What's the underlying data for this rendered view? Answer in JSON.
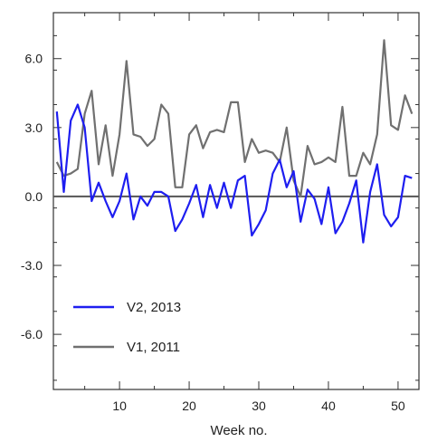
{
  "chart_data": {
    "type": "line",
    "xlabel": "Week no.",
    "ylabel": "",
    "xlim": [
      0.5,
      53
    ],
    "ylim": [
      -8.4,
      8.0
    ],
    "xticks": [
      10,
      20,
      30,
      40,
      50
    ],
    "xtick_labels": [
      "10",
      "20",
      "30",
      "40",
      "50"
    ],
    "yticks": [
      6.0,
      3.0,
      0.0,
      -3.0,
      -6.0
    ],
    "ytick_labels": [
      "6.0",
      "3.0",
      "0.0",
      "-3.0",
      "-6.0"
    ],
    "zero_line": 0.0,
    "grid": false,
    "legend_position": "bottom-left",
    "series": [
      {
        "name": "V1, 2011",
        "color": "#707070",
        "x": [
          1,
          2,
          3,
          4,
          5,
          6,
          7,
          8,
          9,
          10,
          11,
          12,
          13,
          14,
          15,
          16,
          17,
          18,
          19,
          20,
          21,
          22,
          23,
          24,
          25,
          26,
          27,
          28,
          29,
          30,
          31,
          32,
          33,
          34,
          35,
          36,
          37,
          38,
          39,
          40,
          41,
          42,
          43,
          44,
          45,
          46,
          47,
          48,
          49,
          50,
          51,
          52
        ],
        "values": [
          1.5,
          0.9,
          1.0,
          1.2,
          3.6,
          4.6,
          1.4,
          3.1,
          0.9,
          2.7,
          5.9,
          2.7,
          2.6,
          2.2,
          2.5,
          4.0,
          3.6,
          0.4,
          0.4,
          2.7,
          3.1,
          2.1,
          2.8,
          2.9,
          2.8,
          4.1,
          4.1,
          1.5,
          2.5,
          1.9,
          2.0,
          1.9,
          1.5,
          3.0,
          0.7,
          0.0,
          2.2,
          1.4,
          1.5,
          1.7,
          1.5,
          3.9,
          0.9,
          0.9,
          1.9,
          1.4,
          2.7,
          6.8,
          3.1,
          2.9,
          4.4,
          3.6
        ]
      },
      {
        "name": "V2, 2013",
        "color": "#1e1ef0",
        "x": [
          1,
          2,
          3,
          4,
          5,
          6,
          7,
          8,
          9,
          10,
          11,
          12,
          13,
          14,
          15,
          16,
          17,
          18,
          19,
          20,
          21,
          22,
          23,
          24,
          25,
          26,
          27,
          28,
          29,
          30,
          31,
          32,
          33,
          34,
          35,
          36,
          37,
          38,
          39,
          40,
          41,
          42,
          43,
          44,
          45,
          46,
          47,
          48,
          49,
          50,
          51,
          52
        ],
        "values": [
          3.7,
          0.2,
          3.3,
          4.0,
          3.0,
          -0.2,
          0.6,
          -0.2,
          -0.9,
          -0.2,
          1.0,
          -1.0,
          0.0,
          -0.4,
          0.2,
          0.2,
          0.0,
          -1.5,
          -1.0,
          -0.3,
          0.5,
          -0.9,
          0.5,
          -0.5,
          0.6,
          -0.5,
          0.7,
          0.9,
          -1.7,
          -1.2,
          -0.6,
          1.0,
          1.6,
          0.4,
          1.1,
          -1.1,
          0.3,
          -0.1,
          -1.2,
          0.4,
          -1.6,
          -1.1,
          -0.3,
          0.7,
          -2.0,
          0.2,
          1.4,
          -0.8,
          -1.3,
          -0.9,
          0.9,
          0.8
        ]
      }
    ]
  }
}
